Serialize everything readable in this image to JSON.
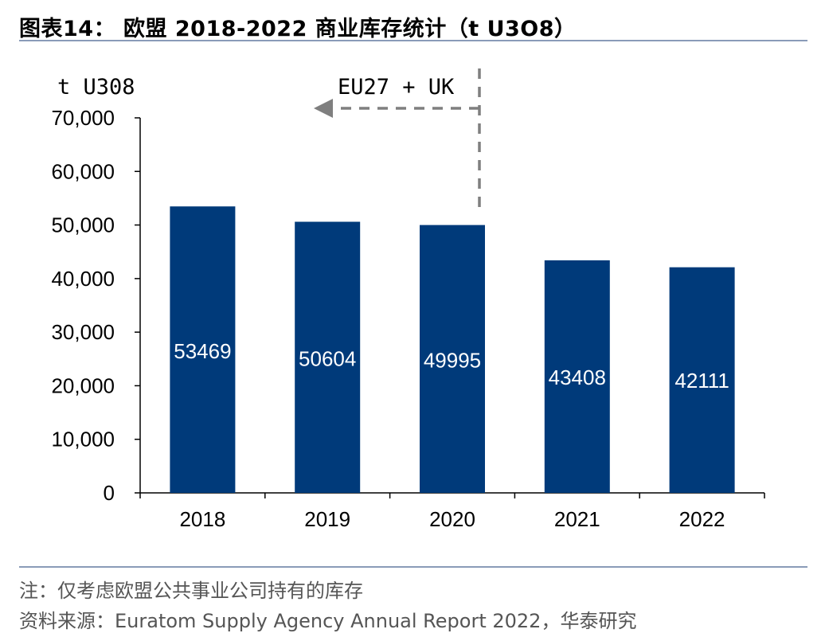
{
  "title": "图表14： 欧盟 2018-2022 商业库存统计（t U3O8）",
  "chart_data": {
    "type": "bar",
    "title": "图表14： 欧盟 2018-2022 商业库存统计（t U3O8）",
    "ylabel": "t U308",
    "categories": [
      "2018",
      "2019",
      "2020",
      "2021",
      "2022"
    ],
    "values": [
      53469,
      50604,
      49995,
      43408,
      42111
    ],
    "value_labels": [
      "53469",
      "50604",
      "49995",
      "43408",
      "42111"
    ],
    "ylim": [
      0,
      70000
    ],
    "yticks": [
      0,
      10000,
      20000,
      30000,
      40000,
      50000,
      60000,
      70000
    ],
    "ytick_labels": [
      "0",
      "10,000",
      "20,000",
      "30,000",
      "40,000",
      "50,000",
      "60,000",
      "70,000"
    ],
    "grid": false,
    "bar_color": "#003a7a",
    "annotation": "EU27 + UK"
  },
  "footer": {
    "note": "注：仅考虑欧盟公共事业公司持有的库存",
    "source": "资料来源：Euratom Supply Agency Annual Report 2022，华泰研究"
  }
}
